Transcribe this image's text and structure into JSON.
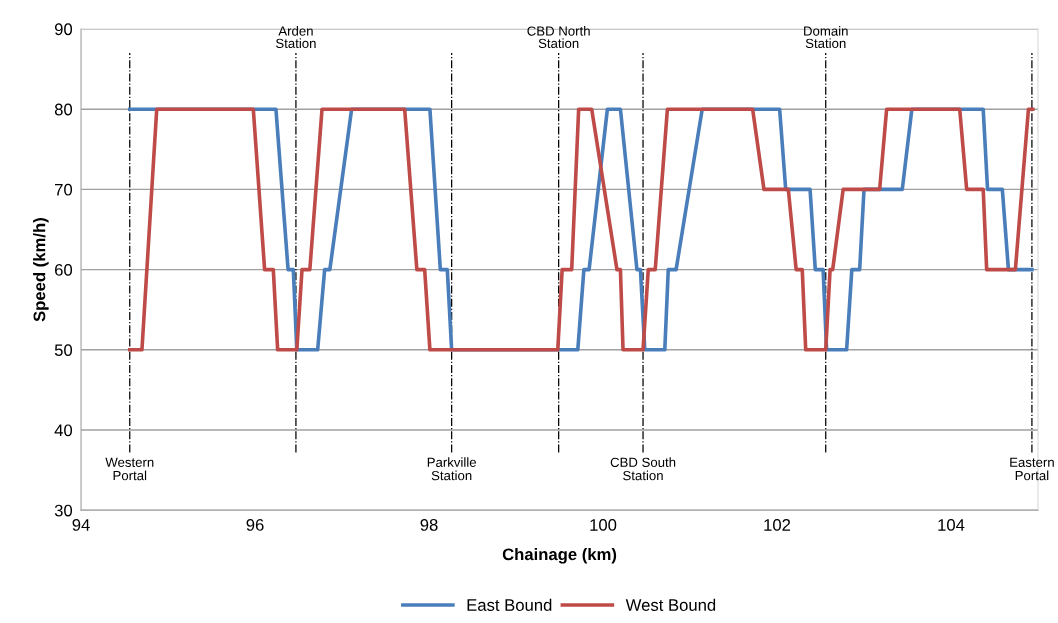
{
  "chart_data": {
    "type": "line",
    "xlabel": "Chainage (km)",
    "ylabel": "Speed (km/h)",
    "xlim": [
      94,
      105
    ],
    "xticks": [
      94,
      96,
      98,
      100,
      102,
      104
    ],
    "ylim": [
      30,
      90
    ],
    "yticks": [
      30,
      40,
      50,
      60,
      70,
      80,
      90
    ],
    "grid": "y",
    "legend": "bottom",
    "marker": "none",
    "line_style": "solid",
    "series": [
      {
        "name": "East Bound",
        "color": "#4a7ebb",
        "x": [
          94.56,
          96.24,
          96.38,
          96.44,
          96.48,
          96.72,
          96.8,
          96.86,
          97.11,
          98.01,
          98.13,
          98.21,
          98.26,
          99.71,
          99.78,
          99.84,
          100.05,
          100.2,
          100.39,
          100.43,
          100.48,
          100.71,
          100.75,
          100.84,
          101.14,
          102.03,
          102.1,
          102.38,
          102.44,
          102.53,
          102.57,
          102.8,
          102.86,
          102.95,
          103.0,
          103.44,
          103.55,
          104.37,
          104.42,
          104.59,
          104.66,
          104.93
        ],
        "values": [
          80,
          80,
          60,
          60,
          50,
          50,
          60,
          60,
          80,
          80,
          60,
          60,
          50,
          50,
          60,
          60,
          80,
          80,
          60,
          60,
          50,
          50,
          60,
          60,
          80,
          80,
          70,
          70,
          60,
          60,
          50,
          50,
          60,
          60,
          70,
          70,
          80,
          80,
          70,
          70,
          60,
          60
        ]
      },
      {
        "name": "West Bound",
        "color": "#be4b48",
        "x": [
          94.56,
          94.7,
          94.87,
          95.98,
          96.11,
          96.21,
          96.26,
          96.48,
          96.54,
          96.63,
          96.77,
          97.72,
          97.86,
          97.95,
          98.01,
          99.48,
          99.53,
          99.64,
          99.72,
          99.87,
          100.16,
          100.2,
          100.23,
          100.46,
          100.52,
          100.6,
          100.74,
          101.72,
          101.85,
          102.13,
          102.22,
          102.29,
          102.33,
          102.56,
          102.61,
          102.64,
          102.76,
          103.18,
          103.26,
          104.1,
          104.18,
          104.37,
          104.41,
          104.74,
          104.89,
          104.94
        ],
        "values": [
          50,
          50,
          80,
          80,
          60,
          60,
          50,
          50,
          60,
          60,
          80,
          80,
          60,
          60,
          50,
          50,
          60,
          60,
          80,
          80,
          60,
          60,
          50,
          50,
          60,
          60,
          80,
          80,
          70,
          70,
          60,
          60,
          50,
          50,
          60,
          60,
          70,
          70,
          80,
          80,
          70,
          70,
          60,
          60,
          80,
          80
        ]
      }
    ],
    "ref_lines": [
      {
        "axis": "x",
        "value": 94.56,
        "label": "Western\nPortal",
        "color": "#000000",
        "line_style": "dashdot"
      },
      {
        "axis": "x",
        "value": 96.47,
        "label": "Arden\nStation",
        "color": "#000000",
        "line_style": "dashdot"
      },
      {
        "axis": "x",
        "value": 98.26,
        "label": "Parkville\nStation",
        "color": "#000000",
        "line_style": "dashdot"
      },
      {
        "axis": "x",
        "value": 99.49,
        "label": "CBD North\nStation",
        "color": "#000000",
        "line_style": "dashdot"
      },
      {
        "axis": "x",
        "value": 100.46,
        "label": "CBD South\nStation",
        "color": "#000000",
        "line_style": "dashdot"
      },
      {
        "axis": "x",
        "value": 102.56,
        "label": "Domain\nStation",
        "color": "#000000",
        "line_style": "dashdot"
      },
      {
        "axis": "x",
        "value": 104.93,
        "label": "Eastern\nPortal",
        "color": "#000000",
        "line_style": "dashdot"
      }
    ]
  }
}
